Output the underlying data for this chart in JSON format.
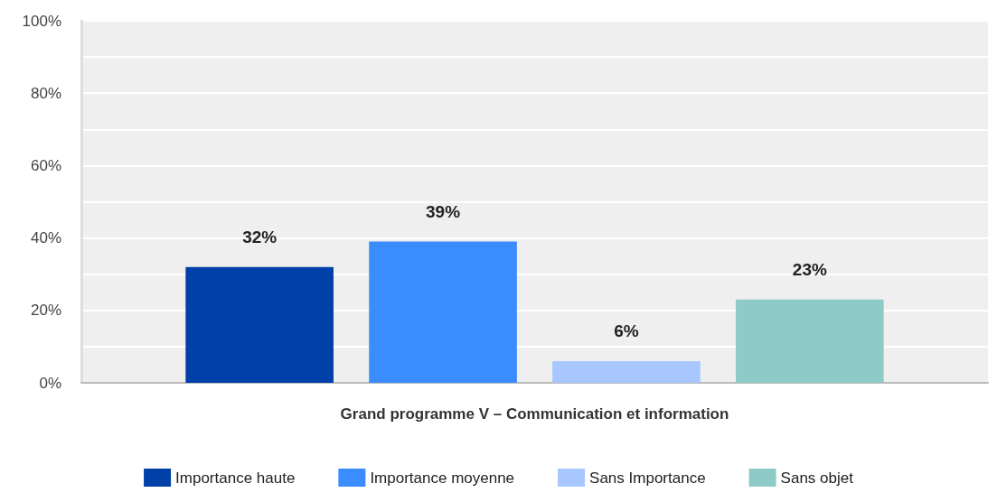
{
  "chart_data": {
    "type": "bar",
    "categories": [
      "Grand programme V – Communication et information"
    ],
    "series": [
      {
        "name": "Importance haute",
        "color": "#0040a8",
        "values": [
          32
        ],
        "value_labels": [
          "32%"
        ]
      },
      {
        "name": "Importance moyenne",
        "color": "#3a8cff",
        "values": [
          39
        ],
        "value_labels": [
          "39%"
        ]
      },
      {
        "name": "Sans Importance",
        "color": "#a8c7ff",
        "values": [
          6
        ],
        "value_labels": [
          "6%"
        ]
      },
      {
        "name": "Sans objet",
        "color": "#8ecac6",
        "values": [
          23
        ],
        "value_labels": [
          "23%"
        ]
      }
    ],
    "ylim": [
      0,
      100
    ],
    "yticks": [
      {
        "value": 0,
        "label": "0%"
      },
      {
        "value": 10,
        "label": null
      },
      {
        "value": 20,
        "label": "20%"
      },
      {
        "value": 30,
        "label": null
      },
      {
        "value": 40,
        "label": "40%"
      },
      {
        "value": 50,
        "label": null
      },
      {
        "value": 60,
        "label": "60%"
      },
      {
        "value": 70,
        "label": null
      },
      {
        "value": 80,
        "label": "80%"
      },
      {
        "value": 90,
        "label": null
      },
      {
        "value": 100,
        "label": "100%"
      }
    ],
    "grid": true,
    "legend": "bottom"
  }
}
